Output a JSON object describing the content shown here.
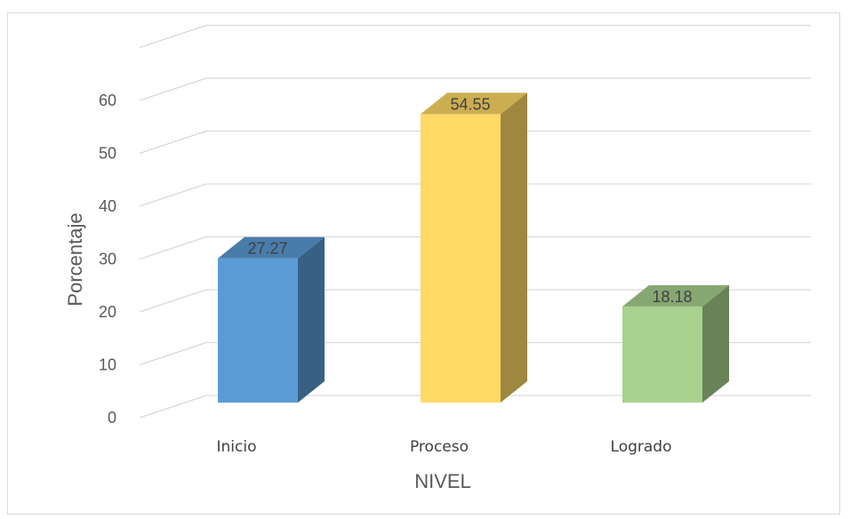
{
  "chart_data": {
    "type": "bar",
    "style": "3d-column",
    "categories": [
      "Inicio",
      "Proceso",
      "Logrado"
    ],
    "values": [
      27.27,
      54.55,
      18.18
    ],
    "value_labels": [
      "27.27",
      "54.55",
      "18.18"
    ],
    "colors": [
      "#5b9bd5",
      "#ffd966",
      "#a9d18e"
    ],
    "xlabel": "NIVEL",
    "ylabel": "Porcentaje",
    "ylim": [
      0,
      70
    ],
    "yticks": [
      0,
      10,
      20,
      30,
      40,
      50,
      60
    ],
    "grid": true,
    "legend": "none"
  }
}
